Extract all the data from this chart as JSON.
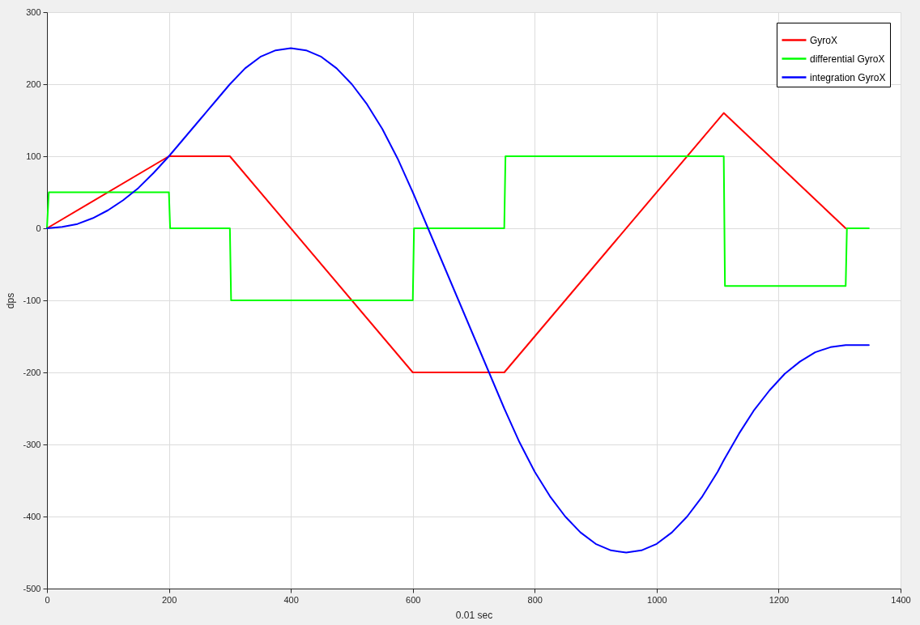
{
  "chart_data": {
    "type": "line",
    "xlabel": "0.01 sec",
    "ylabel": "dps",
    "xlim": [
      0,
      1400
    ],
    "ylim": [
      -500,
      300
    ],
    "xticks": [
      0,
      200,
      400,
      600,
      800,
      1000,
      1200,
      1400
    ],
    "yticks": [
      -500,
      -400,
      -300,
      -200,
      -100,
      0,
      100,
      200,
      300
    ],
    "grid": true,
    "legend": "top right",
    "series": [
      {
        "name": "GyroX",
        "color": "#ff0000",
        "x": [
          0,
          200,
          300,
          600,
          750,
          1110,
          1310
        ],
        "values": [
          0,
          100,
          100,
          -200,
          -200,
          160,
          0
        ]
      },
      {
        "name": "differential GyroX",
        "color": "#00ff00",
        "x": [
          0,
          3,
          200,
          202,
          300,
          302,
          600,
          602,
          750,
          752,
          1110,
          1112,
          1310,
          1312,
          1348
        ],
        "values": [
          0,
          50,
          50,
          0,
          0,
          -100,
          -100,
          0,
          0,
          100,
          100,
          -80,
          -80,
          0,
          0
        ]
      },
      {
        "name": "integration GyroX",
        "color": "#0000ff",
        "x": [
          0,
          25,
          50,
          75,
          100,
          125,
          150,
          175,
          200,
          225,
          250,
          275,
          300,
          325,
          350,
          375,
          400,
          425,
          450,
          475,
          500,
          525,
          550,
          575,
          600,
          625,
          650,
          675,
          700,
          725,
          750,
          775,
          800,
          825,
          850,
          875,
          900,
          925,
          950,
          975,
          1000,
          1025,
          1050,
          1075,
          1100,
          1110,
          1135,
          1160,
          1185,
          1210,
          1235,
          1260,
          1285,
          1310,
          1348
        ],
        "values": [
          0,
          2,
          6,
          14,
          25,
          39,
          56,
          77,
          100,
          125,
          150,
          175,
          200,
          222,
          238,
          247,
          250,
          247,
          238,
          222,
          200,
          172,
          138,
          97,
          50,
          0,
          -50,
          -100,
          -150,
          -200,
          -250,
          -297,
          -338,
          -372,
          -400,
          -422,
          -438,
          -447,
          -450,
          -447,
          -438,
          -422,
          -400,
          -372,
          -338,
          -322,
          -285,
          -252,
          -225,
          -202,
          -185,
          -172,
          -165,
          -162,
          -162
        ]
      }
    ]
  }
}
